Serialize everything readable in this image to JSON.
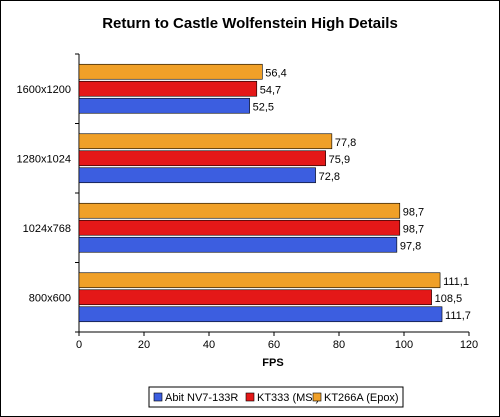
{
  "chart_data": {
    "type": "bar",
    "orientation": "horizontal",
    "title": "Return to Castle Wolfenstein High Details",
    "xlabel": "FPS",
    "ylabel": "",
    "categories": [
      "1600x1200",
      "1280x1024",
      "1024x768",
      "800x600"
    ],
    "series": [
      {
        "name": "KT266A (Epox)",
        "color": "#f0a028",
        "values": [
          56.4,
          77.8,
          98.7,
          111.1
        ],
        "labels": [
          "56,4",
          "77,8",
          "98,7",
          "111,1"
        ]
      },
      {
        "name": "KT333 (MSI)",
        "color": "#e41818",
        "values": [
          54.7,
          75.9,
          98.7,
          108.5
        ],
        "labels": [
          "54,7",
          "75,9",
          "98,7",
          "108,5"
        ]
      },
      {
        "name": "Abit NV7-133R",
        "color": "#3c5ee0",
        "values": [
          52.5,
          72.8,
          97.8,
          111.7
        ],
        "labels": [
          "52,5",
          "72,8",
          "97,8",
          "111,7"
        ]
      }
    ],
    "legend_order": [
      "Abit NV7-133R",
      "KT333 (MSI)",
      "KT266A (Epox)"
    ],
    "xlim": [
      0,
      120
    ],
    "xticks": [
      0,
      20,
      40,
      60,
      80,
      100,
      120
    ],
    "grid": false,
    "legend_position": "bottom"
  }
}
